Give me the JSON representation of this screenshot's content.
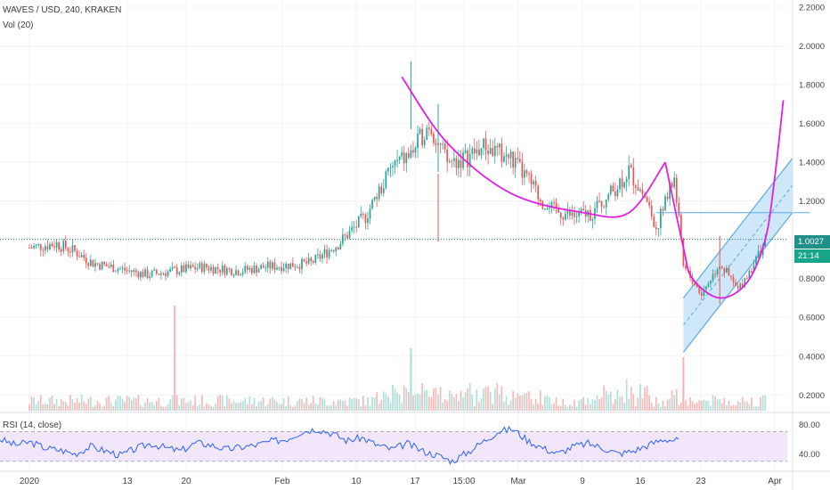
{
  "header": {
    "symbol_line": "WAVES / USD, 240, KRAKEN",
    "volume_label": "Vol (20)",
    "rsi_label": "RSI (14, close)"
  },
  "price_badge": {
    "value": "1.0027",
    "countdown": "21:14"
  },
  "colors": {
    "up": "#26a69a",
    "down": "#ef5350",
    "bearish_volume": "#f3b4b1",
    "bullish_volume": "#a8dcd6",
    "annotation_magenta": "#e020e0",
    "channel_blue": "#5aa9e6",
    "channel_fill": "#bfe0f7",
    "rsi_line": "#2962ff",
    "rsi_band_fill": "#f2e6fb",
    "price_line": "#2a7f8a",
    "badge_price_bg": "#1f8f8a",
    "badge_countdown_bg": "#17a589"
  },
  "chart_data": {
    "type": "candlestick",
    "symbol": "WAVES / USD",
    "timeframe": "240",
    "exchange": "KRAKEN",
    "x_ticks": [
      "2020",
      "13",
      "20",
      "Feb",
      "10",
      "17",
      "15:00",
      "Mar",
      "9",
      "16",
      "23",
      "Apr"
    ],
    "y_axis": {
      "ticks": [
        "2.2000",
        "2.0000",
        "1.8000",
        "1.6000",
        "1.4000",
        "1.2000",
        "1.0000",
        "0.8000",
        "0.6000",
        "0.4000",
        "0.2000"
      ],
      "range": [
        0.16,
        2.2
      ]
    },
    "price_series": {
      "name": "WAVES / USD",
      "approx_path": [
        {
          "x": "2020-01-01",
          "y": 0.96
        },
        {
          "x": "2020-01-04",
          "y": 0.98
        },
        {
          "x": "2020-01-06",
          "y": 0.94
        },
        {
          "x": "2020-01-08",
          "y": 0.88
        },
        {
          "x": "2020-01-11",
          "y": 0.85
        },
        {
          "x": "2020-01-14",
          "y": 0.82
        },
        {
          "x": "2020-01-17",
          "y": 0.84
        },
        {
          "x": "2020-01-20",
          "y": 0.86
        },
        {
          "x": "2020-01-24",
          "y": 0.84
        },
        {
          "x": "2020-01-27",
          "y": 0.86
        },
        {
          "x": "2020-02-01",
          "y": 0.88
        },
        {
          "x": "2020-02-04",
          "y": 0.98
        },
        {
          "x": "2020-02-07",
          "y": 1.12
        },
        {
          "x": "2020-02-10",
          "y": 1.38
        },
        {
          "x": "2020-02-12",
          "y": 1.44
        },
        {
          "x": "2020-02-14",
          "y": 1.6
        },
        {
          "x": "2020-02-16",
          "y": 1.4
        },
        {
          "x": "2020-02-18",
          "y": 1.42
        },
        {
          "x": "2020-02-20",
          "y": 1.48
        },
        {
          "x": "2020-02-23",
          "y": 1.42
        },
        {
          "x": "2020-02-25",
          "y": 1.3
        },
        {
          "x": "2020-02-27",
          "y": 1.16
        },
        {
          "x": "2020-03-01",
          "y": 1.12
        },
        {
          "x": "2020-03-03",
          "y": 1.14
        },
        {
          "x": "2020-03-05",
          "y": 1.24
        },
        {
          "x": "2020-03-07",
          "y": 1.36
        },
        {
          "x": "2020-03-09",
          "y": 1.2
        },
        {
          "x": "2020-03-10",
          "y": 1.06
        },
        {
          "x": "2020-03-12",
          "y": 1.32
        },
        {
          "x": "2020-03-13",
          "y": 0.86
        },
        {
          "x": "2020-03-15",
          "y": 0.72
        },
        {
          "x": "2020-03-17",
          "y": 0.88
        },
        {
          "x": "2020-03-19",
          "y": 0.74
        },
        {
          "x": "2020-03-21",
          "y": 0.9
        },
        {
          "x": "2020-03-22",
          "y": 1.0
        }
      ],
      "notable_highs": [
        {
          "x": "2020-02-12",
          "y": 1.92
        },
        {
          "x": "2020-02-15",
          "y": 1.7
        }
      ],
      "notable_lows": [
        {
          "x": "2020-02-15",
          "y": 0.99
        },
        {
          "x": "2020-03-17",
          "y": 0.67
        }
      ],
      "last_price": 1.0027
    },
    "horizontal_lines": [
      {
        "y": 1.0027,
        "style": "dotted"
      },
      {
        "y": 1.14,
        "x_from": "2020-03-10",
        "x_to": "2020-03-24",
        "style": "solid"
      }
    ],
    "annotations": {
      "cup_curve": [
        {
          "x": "2020-02-11",
          "y": 1.84
        },
        {
          "x": "2020-02-16",
          "y": 1.5
        },
        {
          "x": "2020-02-23",
          "y": 1.24
        },
        {
          "x": "2020-03-02",
          "y": 1.14
        },
        {
          "x": "2020-03-07",
          "y": 1.14
        },
        {
          "x": "2020-03-11",
          "y": 1.4
        }
      ],
      "handle_curve": [
        {
          "x": "2020-03-11",
          "y": 1.4
        },
        {
          "x": "2020-03-13",
          "y": 0.96
        },
        {
          "x": "2020-03-14",
          "y": 0.8
        },
        {
          "x": "2020-03-17",
          "y": 0.7
        },
        {
          "x": "2020-03-20",
          "y": 0.78
        },
        {
          "x": "2020-03-22",
          "y": 1.0
        },
        {
          "x": "2020-03-23",
          "y": 1.3
        },
        {
          "x": "2020-03-24",
          "y": 1.72
        }
      ],
      "parallel_channel": {
        "lower_start": {
          "x": "2020-03-13",
          "y": 0.42
        },
        "lower_end": {
          "x": "2020-03-25",
          "y": 1.14
        },
        "upper_start": {
          "x": "2020-03-13",
          "y": 0.7
        },
        "upper_end": {
          "x": "2020-03-25",
          "y": 1.42
        }
      }
    },
    "volume": {
      "name": "Vol (20)",
      "notable_bars": [
        {
          "x": "2020-01-17",
          "value": "high"
        },
        {
          "x": "2020-02-12",
          "value": "high"
        },
        {
          "x": "2020-03-13",
          "value": "high"
        }
      ]
    },
    "rsi": {
      "name": "RSI (14, close)",
      "ticks": [
        "80.00",
        "40.00"
      ],
      "range": [
        20,
        90
      ],
      "band": [
        30,
        70
      ],
      "values": [
        60,
        52,
        56,
        48,
        45,
        40,
        50,
        44,
        38,
        47,
        54,
        48,
        44,
        55,
        52,
        46,
        49,
        52,
        57,
        60,
        70,
        74,
        68,
        58,
        62,
        52,
        46,
        54,
        44,
        38,
        30,
        42,
        56,
        70,
        74,
        58,
        48,
        40,
        50,
        54,
        48,
        40,
        44,
        52,
        60,
        58
      ]
    }
  }
}
